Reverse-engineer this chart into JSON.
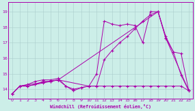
{
  "bg_color": "#cceee8",
  "grid_color": "#aacccc",
  "line_color": "#aa00aa",
  "xlabel": "Windchill (Refroidissement éolien,°C)",
  "xlim": [
    -0.5,
    23.5
  ],
  "ylim": [
    13.4,
    19.6
  ],
  "yticks": [
    14,
    15,
    16,
    17,
    18,
    19
  ],
  "xticks": [
    0,
    1,
    2,
    3,
    4,
    5,
    6,
    7,
    8,
    9,
    10,
    11,
    12,
    13,
    14,
    15,
    16,
    17,
    18,
    19,
    20,
    21,
    22,
    23
  ],
  "s1_x": [
    0,
    1,
    2,
    3,
    4,
    5,
    6,
    7,
    8,
    9,
    10,
    11,
    12,
    13,
    14,
    15,
    16,
    17,
    18,
    19,
    20,
    21,
    22,
    23
  ],
  "s1_y": [
    13.7,
    14.2,
    14.3,
    14.5,
    14.6,
    14.6,
    14.7,
    14.2,
    13.9,
    14.1,
    14.2,
    15.0,
    18.4,
    18.2,
    18.1,
    18.2,
    18.1,
    17.0,
    19.0,
    19.0,
    17.4,
    16.4,
    14.9,
    13.9
  ],
  "s2_x": [
    0,
    1,
    6,
    19,
    20,
    23
  ],
  "s2_y": [
    13.7,
    14.2,
    14.6,
    19.0,
    17.3,
    13.9
  ],
  "s3_x": [
    0,
    1,
    2,
    3,
    4,
    5,
    6,
    7,
    8,
    9,
    10,
    11,
    12,
    13,
    14,
    15,
    16,
    17,
    18,
    19,
    20,
    21,
    22,
    23
  ],
  "s3_y": [
    13.7,
    14.2,
    14.2,
    14.3,
    14.4,
    14.5,
    14.6,
    14.2,
    14.0,
    14.1,
    14.2,
    14.2,
    14.2,
    14.2,
    14.2,
    14.2,
    14.2,
    14.2,
    14.2,
    14.2,
    14.2,
    14.2,
    14.2,
    13.9
  ],
  "s4_x": [
    0,
    1,
    2,
    3,
    4,
    5,
    6,
    10,
    11,
    12,
    13,
    14,
    15,
    16,
    17,
    18,
    19,
    20,
    21,
    22,
    23
  ],
  "s4_y": [
    13.7,
    14.2,
    14.2,
    14.3,
    14.5,
    14.5,
    14.6,
    14.2,
    14.2,
    15.9,
    16.5,
    17.0,
    17.4,
    17.9,
    18.4,
    18.8,
    19.0,
    17.3,
    16.4,
    16.3,
    13.9
  ]
}
